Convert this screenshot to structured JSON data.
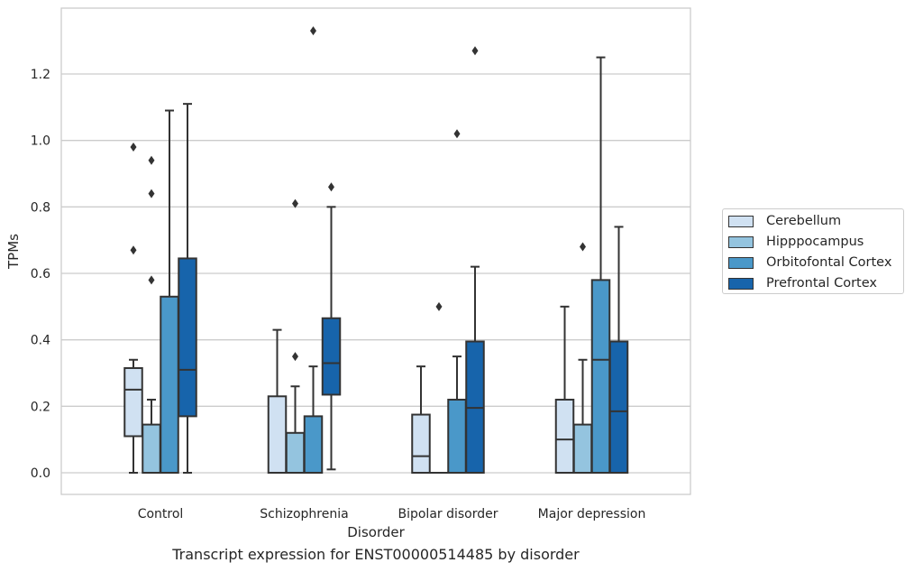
{
  "chart_data": {
    "type": "box",
    "xlabel": "Disorder",
    "ylabel": "TPMs",
    "caption": "Transcript expression for ENST00000514485 by disorder",
    "categories": [
      "Control",
      "Schizophrenia",
      "Bipolar disorder",
      "Major depression"
    ],
    "ylim": [
      -0.065,
      1.39
    ],
    "yticks": [
      0.0,
      0.2,
      0.4,
      0.6,
      0.8,
      1.0,
      1.2
    ],
    "ytick_labels": [
      "0.0",
      "0.2",
      "0.4",
      "0.6",
      "0.8",
      "1.0",
      "1.2"
    ],
    "grid": "horizontal",
    "legend_position": "right",
    "series": [
      {
        "name": "Cerebellum",
        "color": "#d0e1f2",
        "boxes": [
          {
            "whislo": 0.0,
            "q1": 0.11,
            "med": 0.25,
            "q3": 0.315,
            "whishi": 0.34,
            "fliers": [
              0.67,
              0.98
            ]
          },
          {
            "whislo": 0.0,
            "q1": 0.0,
            "med": 0.0,
            "q3": 0.23,
            "whishi": 0.43,
            "fliers": []
          },
          {
            "whislo": 0.0,
            "q1": 0.0,
            "med": 0.05,
            "q3": 0.175,
            "whishi": 0.32,
            "fliers": []
          },
          {
            "whislo": 0.0,
            "q1": 0.0,
            "med": 0.1,
            "q3": 0.22,
            "whishi": 0.5,
            "fliers": []
          }
        ]
      },
      {
        "name": "Hipppocampus",
        "color": "#94c4df",
        "boxes": [
          {
            "whislo": 0.0,
            "q1": 0.0,
            "med": 0.0,
            "q3": 0.145,
            "whishi": 0.22,
            "fliers": [
              0.58,
              0.84,
              0.94
            ]
          },
          {
            "whislo": 0.0,
            "q1": 0.0,
            "med": 0.0,
            "q3": 0.12,
            "whishi": 0.26,
            "fliers": [
              0.35,
              0.81
            ]
          },
          {
            "whislo": 0.0,
            "q1": 0.0,
            "med": 0.0,
            "q3": 0.0,
            "whishi": 0.0,
            "fliers": [
              0.5
            ]
          },
          {
            "whislo": 0.0,
            "q1": 0.0,
            "med": 0.0,
            "q3": 0.145,
            "whishi": 0.34,
            "fliers": [
              0.68
            ]
          }
        ]
      },
      {
        "name": "Orbitofontal Cortex",
        "color": "#4a98c9",
        "boxes": [
          {
            "whislo": 0.0,
            "q1": 0.0,
            "med": 0.0,
            "q3": 0.53,
            "whishi": 1.09,
            "fliers": []
          },
          {
            "whislo": 0.0,
            "q1": 0.0,
            "med": 0.0,
            "q3": 0.17,
            "whishi": 0.32,
            "fliers": [
              1.33
            ]
          },
          {
            "whislo": 0.0,
            "q1": 0.0,
            "med": 0.0,
            "q3": 0.22,
            "whishi": 0.35,
            "fliers": [
              1.02
            ]
          },
          {
            "whislo": 0.0,
            "q1": 0.0,
            "med": 0.34,
            "q3": 0.58,
            "whishi": 1.25,
            "fliers": []
          }
        ]
      },
      {
        "name": "Prefrontal Cortex",
        "color": "#1764ab",
        "boxes": [
          {
            "whislo": 0.0,
            "q1": 0.17,
            "med": 0.31,
            "q3": 0.645,
            "whishi": 1.11,
            "fliers": []
          },
          {
            "whislo": 0.01,
            "q1": 0.235,
            "med": 0.33,
            "q3": 0.465,
            "whishi": 0.8,
            "fliers": [
              0.86
            ]
          },
          {
            "whislo": 0.0,
            "q1": 0.0,
            "med": 0.195,
            "q3": 0.395,
            "whishi": 0.62,
            "fliers": [
              1.27
            ]
          },
          {
            "whislo": 0.0,
            "q1": 0.0,
            "med": 0.185,
            "q3": 0.395,
            "whishi": 0.74,
            "fliers": []
          }
        ]
      }
    ]
  }
}
